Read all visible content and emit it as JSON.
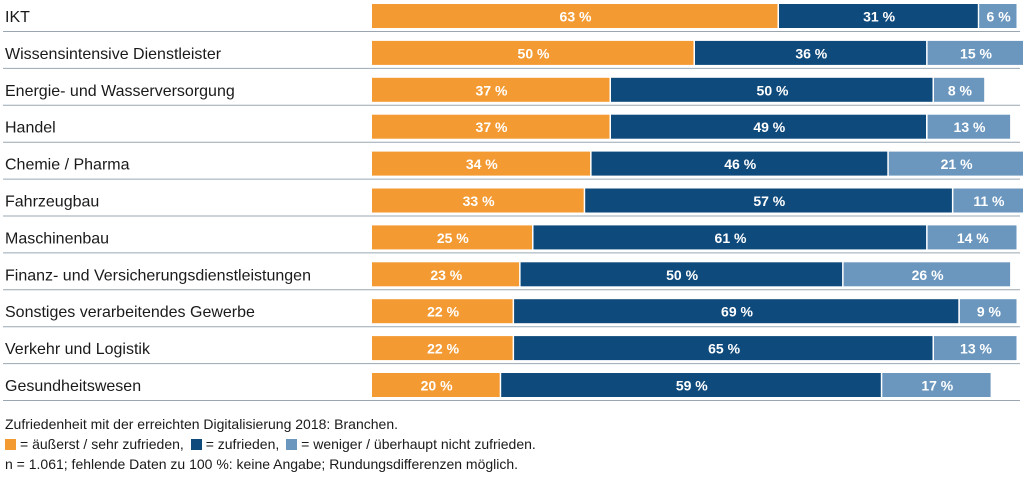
{
  "chart_data": {
    "type": "bar",
    "orientation": "horizontal",
    "stacked": true,
    "categories": [
      "IKT",
      "Wissensintensive Dienstleister",
      "Energie- und Wasserversorgung",
      "Handel",
      "Chemie / Pharma",
      "Fahrzeugbau",
      "Maschinenbau",
      "Finanz- und Versicherungsdienstleistungen",
      "Sonstiges verarbeitendes Gewerbe",
      "Verkehr und Logistik",
      "Gesundheitswesen"
    ],
    "series": [
      {
        "name": "= äußerst / sehr zufrieden,",
        "color": "#f39a32",
        "values": [
          63,
          50,
          37,
          37,
          34,
          33,
          25,
          23,
          22,
          22,
          20
        ],
        "labels": [
          "63 %",
          "50 %",
          "37 %",
          "37 %",
          "34 %",
          "33 %",
          "25 %",
          "23 %",
          "22 %",
          "22 %",
          "20 %"
        ]
      },
      {
        "name": "= zufrieden,",
        "color": "#0f4a7c",
        "values": [
          31,
          36,
          50,
          49,
          46,
          57,
          61,
          50,
          69,
          65,
          59
        ],
        "labels": [
          "31 %",
          "36 %",
          "50 %",
          "49 %",
          "46 %",
          "57 %",
          "61 %",
          "50 %",
          "69 %",
          "65 %",
          "59 %"
        ]
      },
      {
        "name": "= weniger / überhaupt nicht zufrieden.",
        "color": "#6b97bf",
        "values": [
          6,
          15,
          8,
          13,
          21,
          11,
          14,
          26,
          9,
          13,
          17
        ],
        "labels": [
          "6 %",
          "15 %",
          "8 %",
          "13 %",
          "21 %",
          "11 %",
          "14 %",
          "26 %",
          "9 %",
          "13 %",
          "17 %"
        ]
      }
    ],
    "xlim": [
      0,
      100
    ],
    "grid": false,
    "legend": "bottom-left",
    "title": "Zufriedenheit mit der erreichten Digitalisierung 2018:  Branchen.",
    "note": "n = 1.061; fehlende Daten zu 100 %: keine Angabe; Rundungsdifferenzen möglich."
  }
}
